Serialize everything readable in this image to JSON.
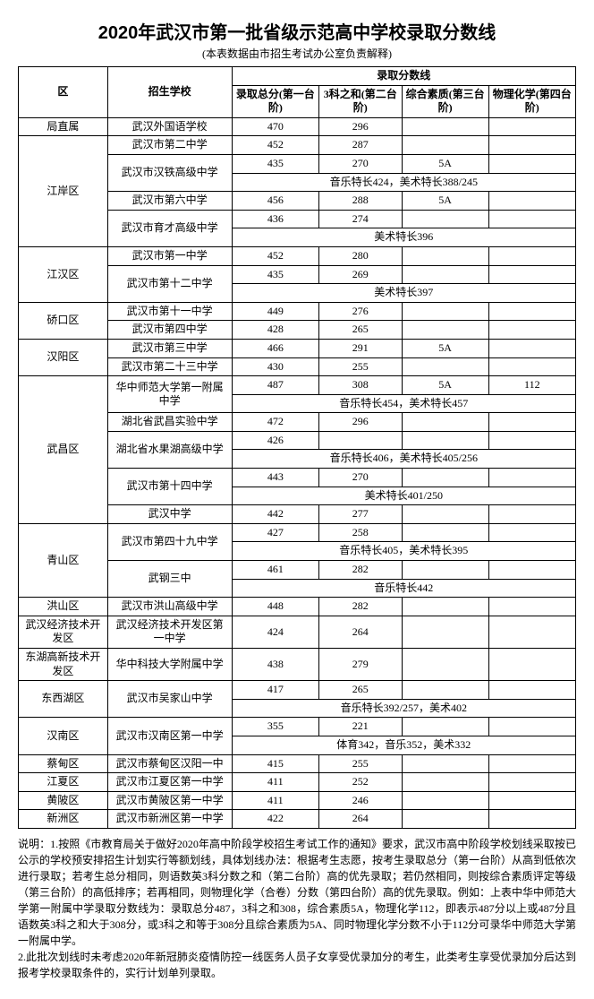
{
  "title": "2020年武汉市第一批省级示范高中学校录取分数线",
  "subtitle": "(本表数据由市招生考试办公室负责解释)",
  "headers": {
    "district": "区",
    "school": "招生学校",
    "scoreGroup": "录取分数线",
    "total": "录取总分(第一台阶)",
    "three": "3科之和(第二台阶)",
    "quality": "综合素质(第三台阶)",
    "phychem": "物理化学(第四台阶)"
  },
  "rows": [
    {
      "district": "局直属",
      "rowspan": 1,
      "cells": [
        {
          "school": "武汉外国语学校",
          "total": "470",
          "three": "296",
          "quality": "",
          "phychem": ""
        }
      ]
    },
    {
      "district": "江岸区",
      "rowspan": 6,
      "cells": [
        {
          "school": "武汉市第二中学",
          "total": "452",
          "three": "287",
          "quality": "",
          "phychem": ""
        },
        {
          "school": "武汉市汉铁高级中学",
          "schoolRowspan": 2,
          "total": "435",
          "three": "270",
          "quality": "5A",
          "phychem": ""
        },
        {
          "merged": "音乐特长424，美术特长388/245"
        },
        {
          "school": "武汉市第六中学",
          "total": "456",
          "three": "288",
          "quality": "5A",
          "phychem": ""
        },
        {
          "school": "武汉市育才高级中学",
          "schoolRowspan": 2,
          "total": "436",
          "three": "274",
          "quality": "",
          "phychem": ""
        },
        {
          "merged": "美术特长396"
        }
      ]
    },
    {
      "district": "江汉区",
      "rowspan": 3,
      "cells": [
        {
          "school": "武汉市第一中学",
          "total": "452",
          "three": "280",
          "quality": "",
          "phychem": ""
        },
        {
          "school": "武汉市第十二中学",
          "schoolRowspan": 2,
          "total": "435",
          "three": "269",
          "quality": "",
          "phychem": ""
        },
        {
          "merged": "美术特长397"
        }
      ]
    },
    {
      "district": "硚口区",
      "rowspan": 2,
      "cells": [
        {
          "school": "武汉市第十一中学",
          "total": "449",
          "three": "276",
          "quality": "",
          "phychem": ""
        },
        {
          "school": "武汉市第四中学",
          "total": "428",
          "three": "265",
          "quality": "",
          "phychem": ""
        }
      ]
    },
    {
      "district": "汉阳区",
      "rowspan": 2,
      "cells": [
        {
          "school": "武汉市第三中学",
          "total": "466",
          "three": "291",
          "quality": "5A",
          "phychem": ""
        },
        {
          "school": "武汉市第二十三中学",
          "total": "430",
          "three": "255",
          "quality": "",
          "phychem": ""
        }
      ]
    },
    {
      "district": "武昌区",
      "rowspan": 8,
      "cells": [
        {
          "school": "华中师范大学第一附属中学",
          "schoolRowspan": 2,
          "total": "487",
          "three": "308",
          "quality": "5A",
          "phychem": "112"
        },
        {
          "merged": "音乐特长454，美术特长457"
        },
        {
          "school": "湖北省武昌实验中学",
          "total": "472",
          "three": "296",
          "quality": "",
          "phychem": ""
        },
        {
          "school": "湖北省水果湖高级中学",
          "schoolRowspan": 2,
          "total": "426",
          "three": "",
          "quality": "",
          "phychem": ""
        },
        {
          "merged": "音乐特长406，美术特长405/256"
        },
        {
          "school": "武汉市第十四中学",
          "schoolRowspan": 2,
          "total": "443",
          "three": "270",
          "quality": "",
          "phychem": ""
        },
        {
          "merged": "美术特长401/250"
        },
        {
          "school": "武汉中学",
          "total": "442",
          "three": "277",
          "quality": "",
          "phychem": ""
        }
      ]
    },
    {
      "district": "青山区",
      "rowspan": 4,
      "cells": [
        {
          "school": "武汉市第四十九中学",
          "schoolRowspan": 2,
          "total": "427",
          "three": "258",
          "quality": "",
          "phychem": ""
        },
        {
          "merged": "音乐特长405，美术特长395"
        },
        {
          "school": "武钢三中",
          "schoolRowspan": 2,
          "total": "461",
          "three": "282",
          "quality": "",
          "phychem": ""
        },
        {
          "merged": "音乐特长442"
        }
      ]
    },
    {
      "district": "洪山区",
      "rowspan": 1,
      "cells": [
        {
          "school": "武汉市洪山高级中学",
          "total": "448",
          "three": "282",
          "quality": "",
          "phychem": ""
        }
      ]
    },
    {
      "district": "武汉经济技术开发区",
      "rowspan": 1,
      "cells": [
        {
          "school": "武汉经济技术开发区第一中学",
          "total": "424",
          "three": "264",
          "quality": "",
          "phychem": ""
        }
      ]
    },
    {
      "district": "东湖高新技术开发区",
      "rowspan": 1,
      "cells": [
        {
          "school": "华中科技大学附属中学",
          "total": "438",
          "three": "279",
          "quality": "",
          "phychem": ""
        }
      ]
    },
    {
      "district": "东西湖区",
      "rowspan": 2,
      "cells": [
        {
          "school": "武汉市吴家山中学",
          "schoolRowspan": 2,
          "total": "417",
          "three": "265",
          "quality": "",
          "phychem": ""
        },
        {
          "merged": "音乐特长392/257，美术402"
        }
      ]
    },
    {
      "district": "汉南区",
      "rowspan": 2,
      "cells": [
        {
          "school": "武汉市汉南区第一中学",
          "schoolRowspan": 2,
          "total": "355",
          "three": "221",
          "quality": "",
          "phychem": ""
        },
        {
          "merged": "体育342，音乐352，美术332"
        }
      ]
    },
    {
      "district": "蔡甸区",
      "rowspan": 1,
      "cells": [
        {
          "school": "武汉市蔡甸区汉阳一中",
          "total": "415",
          "three": "255",
          "quality": "",
          "phychem": ""
        }
      ]
    },
    {
      "district": "江夏区",
      "rowspan": 1,
      "cells": [
        {
          "school": "武汉市江夏区第一中学",
          "total": "411",
          "three": "252",
          "quality": "",
          "phychem": ""
        }
      ]
    },
    {
      "district": "黄陂区",
      "rowspan": 1,
      "cells": [
        {
          "school": "武汉市黄陂区第一中学",
          "total": "411",
          "three": "246",
          "quality": "",
          "phychem": ""
        }
      ]
    },
    {
      "district": "新洲区",
      "rowspan": 1,
      "cells": [
        {
          "school": "武汉市新洲区第一中学",
          "total": "422",
          "three": "264",
          "quality": "",
          "phychem": ""
        }
      ]
    }
  ],
  "notes": "说明：1.按照《市教育局关于做好2020年高中阶段学校招生考试工作的通知》要求，武汉市高中阶段学校划线采取按已公示的学校预安排招生计划实行等额划线，具体划线办法：根据考生志愿，按考生录取总分（第一台阶）从高到低依次进行录取；若考生总分相同，则语数英3科分数之和（第二台阶）高的优先录取；若仍然相同，则按综合素质评定等级（第三台阶）的高低排序；若再相同，则物理化学（合卷）分数（第四台阶）高的优先录取。例如：上表中华中师范大学第一附属中学录取分数线为：录取总分487，3科之和308，综合素质5A，物理化学112，即表示487分以上或487分且语数英3科之和大于308分，或3科之和等于308分且综合素质为5A、同时物理化学分数不小于112分可录华中师范大学第一附属中学。\n2.此批次划线时未考虑2020年新冠肺炎疫情防控一线医务人员子女享受优录加分的考生，此类考生享受优录加分后达到报考学校录取条件的，实行计划单列录取。"
}
